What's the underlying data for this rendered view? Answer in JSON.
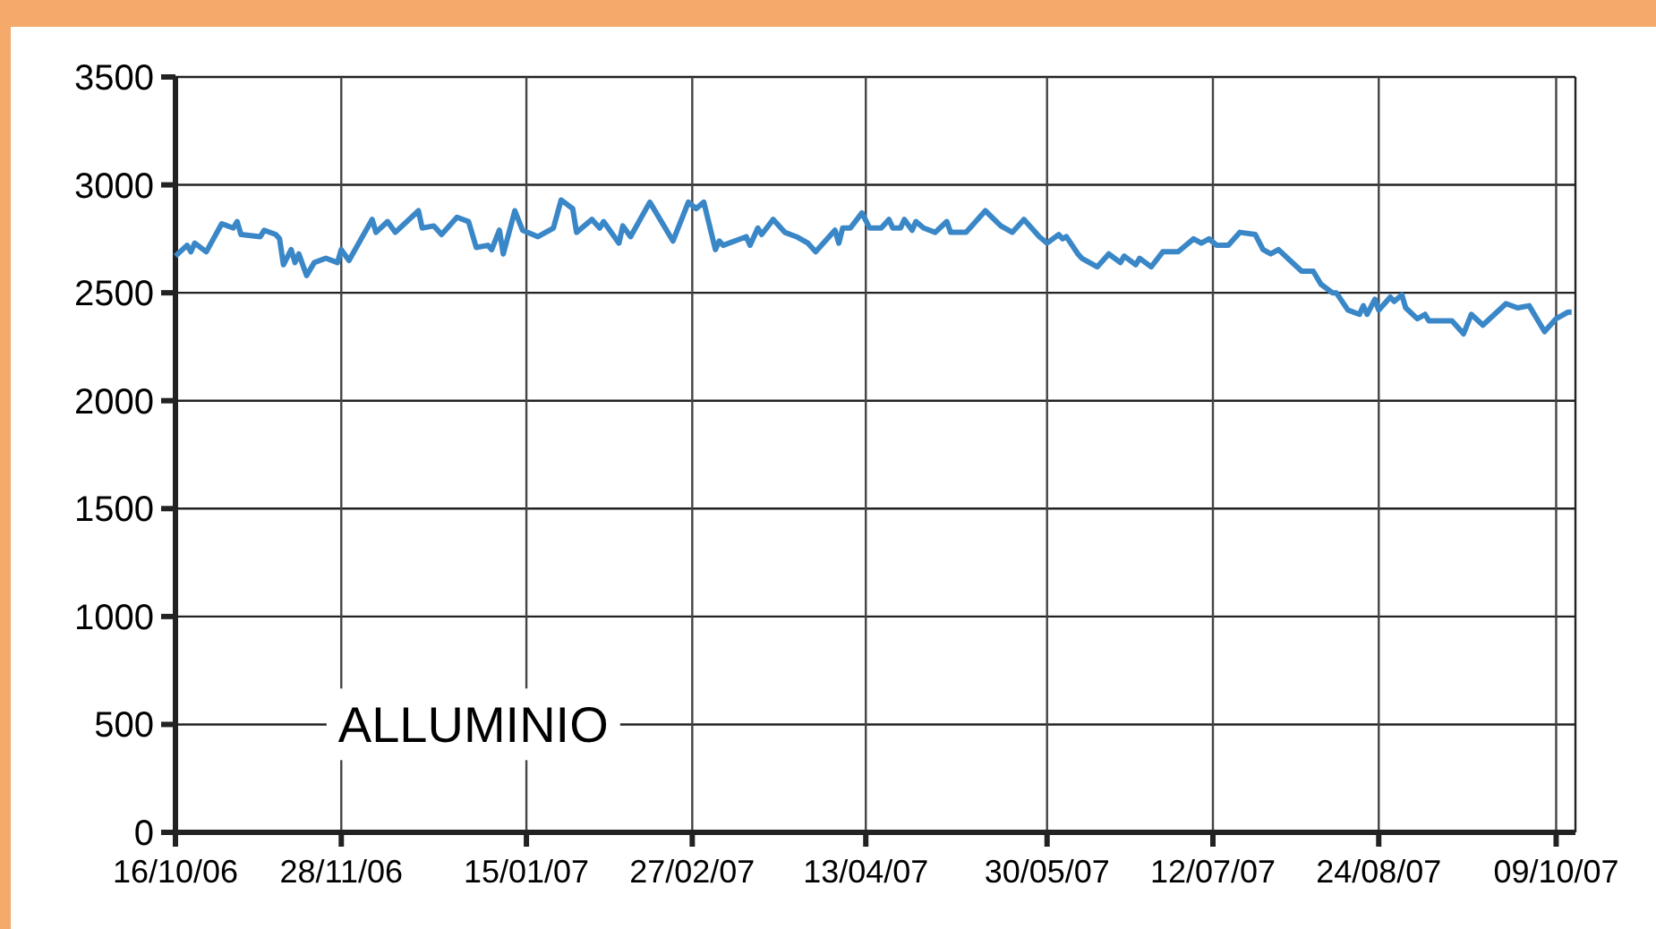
{
  "chart_data": {
    "type": "line",
    "annotations": [
      "ALLUMINIO"
    ],
    "x": [
      "2006-10-16",
      "2006-10-19",
      "2006-10-20",
      "2006-10-21",
      "2006-10-24",
      "2006-10-28",
      "2006-10-31",
      "2006-11-01",
      "2006-11-02",
      "2006-11-07",
      "2006-11-08",
      "2006-11-11",
      "2006-11-12",
      "2006-11-13",
      "2006-11-15",
      "2006-11-16",
      "2006-11-17",
      "2006-11-19",
      "2006-11-21",
      "2006-11-24",
      "2006-11-27",
      "2006-11-28",
      "2006-11-30",
      "2006-12-06",
      "2006-12-07",
      "2006-12-10",
      "2006-12-12",
      "2006-12-18",
      "2006-12-19",
      "2006-12-22",
      "2006-12-24",
      "2006-12-28",
      "2006-12-31",
      "2007-01-02",
      "2007-01-05",
      "2007-01-06",
      "2007-01-08",
      "2007-01-09",
      "2007-01-12",
      "2007-01-14",
      "2007-01-18",
      "2007-01-22",
      "2007-01-24",
      "2007-01-27",
      "2007-01-28",
      "2007-02-01",
      "2007-02-03",
      "2007-02-04",
      "2007-02-08",
      "2007-02-09",
      "2007-02-11",
      "2007-02-16",
      "2007-02-22",
      "2007-02-26",
      "2007-02-28",
      "2007-03-02",
      "2007-03-05",
      "2007-03-06",
      "2007-03-07",
      "2007-03-13",
      "2007-03-14",
      "2007-03-16",
      "2007-03-17",
      "2007-03-20",
      "2007-03-23",
      "2007-03-26",
      "2007-03-29",
      "2007-03-31",
      "2007-04-05",
      "2007-04-06",
      "2007-04-07",
      "2007-04-09",
      "2007-04-12",
      "2007-04-14",
      "2007-04-17",
      "2007-04-19",
      "2007-04-20",
      "2007-04-22",
      "2007-04-23",
      "2007-04-25",
      "2007-04-26",
      "2007-04-28",
      "2007-05-01",
      "2007-05-04",
      "2007-05-05",
      "2007-05-09",
      "2007-05-14",
      "2007-05-18",
      "2007-05-21",
      "2007-05-24",
      "2007-05-28",
      "2007-05-30",
      "2007-06-02",
      "2007-06-03",
      "2007-06-04",
      "2007-06-07",
      "2007-06-08",
      "2007-06-12",
      "2007-06-15",
      "2007-06-18",
      "2007-06-19",
      "2007-06-22",
      "2007-06-23",
      "2007-06-26",
      "2007-06-29",
      "2007-07-03",
      "2007-07-07",
      "2007-07-09",
      "2007-07-11",
      "2007-07-13",
      "2007-07-16",
      "2007-07-19",
      "2007-07-23",
      "2007-07-25",
      "2007-07-27",
      "2007-07-29",
      "2007-08-01",
      "2007-08-04",
      "2007-08-07",
      "2007-08-09",
      "2007-08-12",
      "2007-08-13",
      "2007-08-16",
      "2007-08-19",
      "2007-08-20",
      "2007-08-21",
      "2007-08-23",
      "2007-08-24",
      "2007-08-27",
      "2007-08-28",
      "2007-08-30",
      "2007-08-31",
      "2007-09-03",
      "2007-09-05",
      "2007-09-06",
      "2007-09-12",
      "2007-09-15",
      "2007-09-17",
      "2007-09-20",
      "2007-09-26",
      "2007-09-29",
      "2007-10-02",
      "2007-10-06",
      "2007-10-09",
      "2007-10-12",
      "2007-10-13"
    ],
    "series": [
      {
        "color": "#3a87c8",
        "values": [
          2670,
          2720,
          2690,
          2730,
          2690,
          2820,
          2800,
          2830,
          2770,
          2760,
          2790,
          2770,
          2750,
          2630,
          2700,
          2640,
          2680,
          2580,
          2640,
          2660,
          2640,
          2700,
          2650,
          2840,
          2780,
          2830,
          2780,
          2880,
          2800,
          2810,
          2770,
          2850,
          2830,
          2710,
          2720,
          2700,
          2790,
          2680,
          2880,
          2790,
          2760,
          2800,
          2930,
          2890,
          2780,
          2840,
          2800,
          2830,
          2730,
          2810,
          2760,
          2920,
          2740,
          2920,
          2890,
          2920,
          2700,
          2740,
          2720,
          2760,
          2720,
          2800,
          2770,
          2840,
          2780,
          2760,
          2730,
          2690,
          2790,
          2730,
          2800,
          2800,
          2870,
          2800,
          2800,
          2840,
          2800,
          2800,
          2840,
          2790,
          2830,
          2800,
          2780,
          2830,
          2780,
          2780,
          2880,
          2810,
          2780,
          2840,
          2760,
          2730,
          2770,
          2750,
          2760,
          2680,
          2660,
          2620,
          2680,
          2640,
          2670,
          2630,
          2660,
          2620,
          2690,
          2690,
          2750,
          2730,
          2750,
          2720,
          2720,
          2780,
          2770,
          2700,
          2680,
          2700,
          2650,
          2600,
          2600,
          2540,
          2500,
          2500,
          2420,
          2400,
          2440,
          2400,
          2470,
          2420,
          2480,
          2460,
          2490,
          2430,
          2380,
          2400,
          2370,
          2370,
          2310,
          2400,
          2350,
          2450,
          2430,
          2440,
          2320,
          2380,
          2410,
          2410
        ]
      }
    ],
    "xlim": [
      "2006-10-16",
      "2007-10-14"
    ],
    "xticks": [
      {
        "value": "2006-10-16",
        "label": "16/10/06"
      },
      {
        "value": "2006-11-28",
        "label": "28/11/06"
      },
      {
        "value": "2007-01-15",
        "label": "15/01/07"
      },
      {
        "value": "2007-02-27",
        "label": "27/02/07"
      },
      {
        "value": "2007-04-13",
        "label": "13/04/07"
      },
      {
        "value": "2007-05-30",
        "label": "30/05/07"
      },
      {
        "value": "2007-07-12",
        "label": "12/07/07"
      },
      {
        "value": "2007-08-24",
        "label": "24/08/07"
      },
      {
        "value": "2007-10-09",
        "label": "09/10/07"
      }
    ],
    "ylim": [
      0,
      3500
    ],
    "yticks": [
      0,
      500,
      1000,
      1500,
      2000,
      2500,
      3000,
      3500
    ],
    "grid": true,
    "marker": "none",
    "line_style": "solid"
  }
}
